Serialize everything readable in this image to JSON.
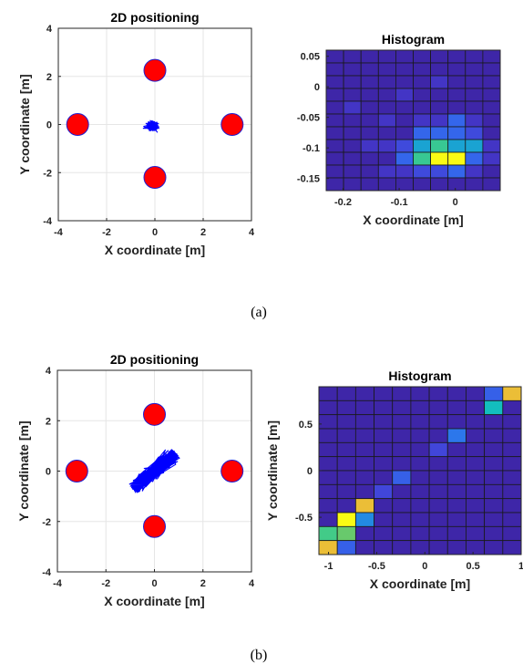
{
  "captions": [
    "(a)",
    "(b)"
  ],
  "chart_data": [
    {
      "type": "scatter",
      "panel": "a",
      "title": "2D positioning",
      "xlabel": "X coordinate [m]",
      "ylabel": "Y coordinate [m]",
      "xlim": [
        -4,
        4
      ],
      "ylim": [
        -4,
        4
      ],
      "xticks": [
        -4,
        -2,
        0,
        2,
        4
      ],
      "yticks": [
        -4,
        -2,
        0,
        2,
        4
      ],
      "grid": true,
      "anchors": [
        [
          0,
          2.25
        ],
        [
          -3.2,
          0
        ],
        [
          3.2,
          0
        ],
        [
          0,
          -2.2
        ]
      ],
      "anchor_color": "#ff0000",
      "anchor_edge_color": "#1f1fd0",
      "trace_color": "#0000ff",
      "trace": {
        "center": [
          -0.1,
          -0.05
        ],
        "spread": [
          0.18,
          0.14
        ],
        "angle_deg": 0
      }
    },
    {
      "type": "heatmap",
      "panel": "a",
      "title": "Histogram",
      "xlabel": "X coordinate [m]",
      "ylabel": "",
      "xlim": [
        -0.23,
        0.08
      ],
      "ylim": [
        -0.17,
        0.06
      ],
      "xticks": [
        -0.2,
        -0.1,
        0
      ],
      "yticks": [
        0.05,
        0,
        -0.05,
        -0.1,
        -0.15
      ],
      "grid_values": [
        [
          0,
          0,
          0,
          0,
          0,
          0,
          0,
          0,
          0,
          0
        ],
        [
          0,
          0,
          0,
          0,
          0,
          0,
          0,
          0,
          0,
          0
        ],
        [
          0,
          0,
          0,
          0,
          0,
          0,
          1,
          0,
          0,
          0
        ],
        [
          0,
          0,
          0,
          0,
          1,
          0,
          0,
          0,
          0,
          0
        ],
        [
          0,
          1,
          0,
          0,
          0,
          0,
          0,
          0,
          0,
          0
        ],
        [
          0,
          0,
          0,
          1,
          0,
          1,
          1,
          3,
          1,
          0
        ],
        [
          0,
          0,
          0,
          0,
          0,
          3,
          3,
          3,
          2,
          0
        ],
        [
          0,
          0,
          1,
          1,
          2,
          6,
          9,
          6,
          6,
          1
        ],
        [
          0,
          0,
          0,
          0,
          3,
          9,
          15,
          15,
          3,
          1
        ],
        [
          0,
          0,
          0,
          1,
          1,
          2,
          2,
          3,
          1,
          0
        ],
        [
          0,
          0,
          0,
          0,
          0,
          0,
          0,
          0,
          0,
          0
        ]
      ]
    },
    {
      "type": "scatter",
      "panel": "b",
      "title": "2D positioning",
      "xlabel": "X coordinate [m]",
      "ylabel": "Y coordinate [m]",
      "xlim": [
        -4,
        4
      ],
      "ylim": [
        -4,
        4
      ],
      "xticks": [
        -4,
        -2,
        0,
        2,
        4
      ],
      "yticks": [
        -4,
        -2,
        0,
        2,
        4
      ],
      "grid": true,
      "anchors": [
        [
          0,
          2.25
        ],
        [
          -3.2,
          0
        ],
        [
          3.2,
          0
        ],
        [
          0,
          -2.2
        ]
      ],
      "anchor_color": "#ff0000",
      "anchor_edge_color": "#1f1fd0",
      "trace_color": "#0000ff",
      "trace": {
        "center": [
          0,
          0
        ],
        "spread": [
          1.15,
          0.22
        ],
        "angle_deg": 38
      }
    },
    {
      "type": "heatmap",
      "panel": "b",
      "title": "Histogram",
      "xlabel": "X coordinate [m]",
      "ylabel": "Y coordinate [m]",
      "xlim": [
        -1.1,
        1.0
      ],
      "ylim": [
        -0.9,
        0.9
      ],
      "xticks": [
        -1,
        -0.5,
        0,
        0.5,
        1
      ],
      "yticks": [
        0.5,
        0,
        -0.5
      ],
      "grid_values": [
        [
          0,
          0,
          0,
          0,
          0,
          0,
          0,
          0,
          0,
          3,
          14
        ],
        [
          0,
          0,
          0,
          0,
          0,
          0,
          0,
          0,
          0,
          8,
          0
        ],
        [
          0,
          0,
          0,
          0,
          0,
          0,
          0,
          0,
          0,
          0,
          0
        ],
        [
          0,
          0,
          0,
          0,
          0,
          0,
          0,
          4,
          0,
          0,
          0
        ],
        [
          0,
          0,
          0,
          0,
          0,
          0,
          2,
          0,
          0,
          0,
          0
        ],
        [
          0,
          0,
          0,
          0,
          0,
          0,
          0,
          0,
          0,
          0,
          0
        ],
        [
          0,
          0,
          0,
          0,
          3,
          0,
          0,
          0,
          0,
          0,
          0
        ],
        [
          0,
          0,
          0,
          2,
          0,
          0,
          0,
          0,
          0,
          0,
          0
        ],
        [
          0,
          0,
          14,
          0,
          0,
          0,
          0,
          0,
          0,
          0,
          0
        ],
        [
          0,
          16,
          5,
          0,
          0,
          0,
          0,
          0,
          0,
          0,
          0
        ],
        [
          10,
          11,
          0,
          0,
          0,
          0,
          0,
          0,
          0,
          0,
          0
        ],
        [
          14,
          3,
          0,
          0,
          0,
          0,
          0,
          0,
          0,
          0,
          0
        ]
      ]
    }
  ]
}
